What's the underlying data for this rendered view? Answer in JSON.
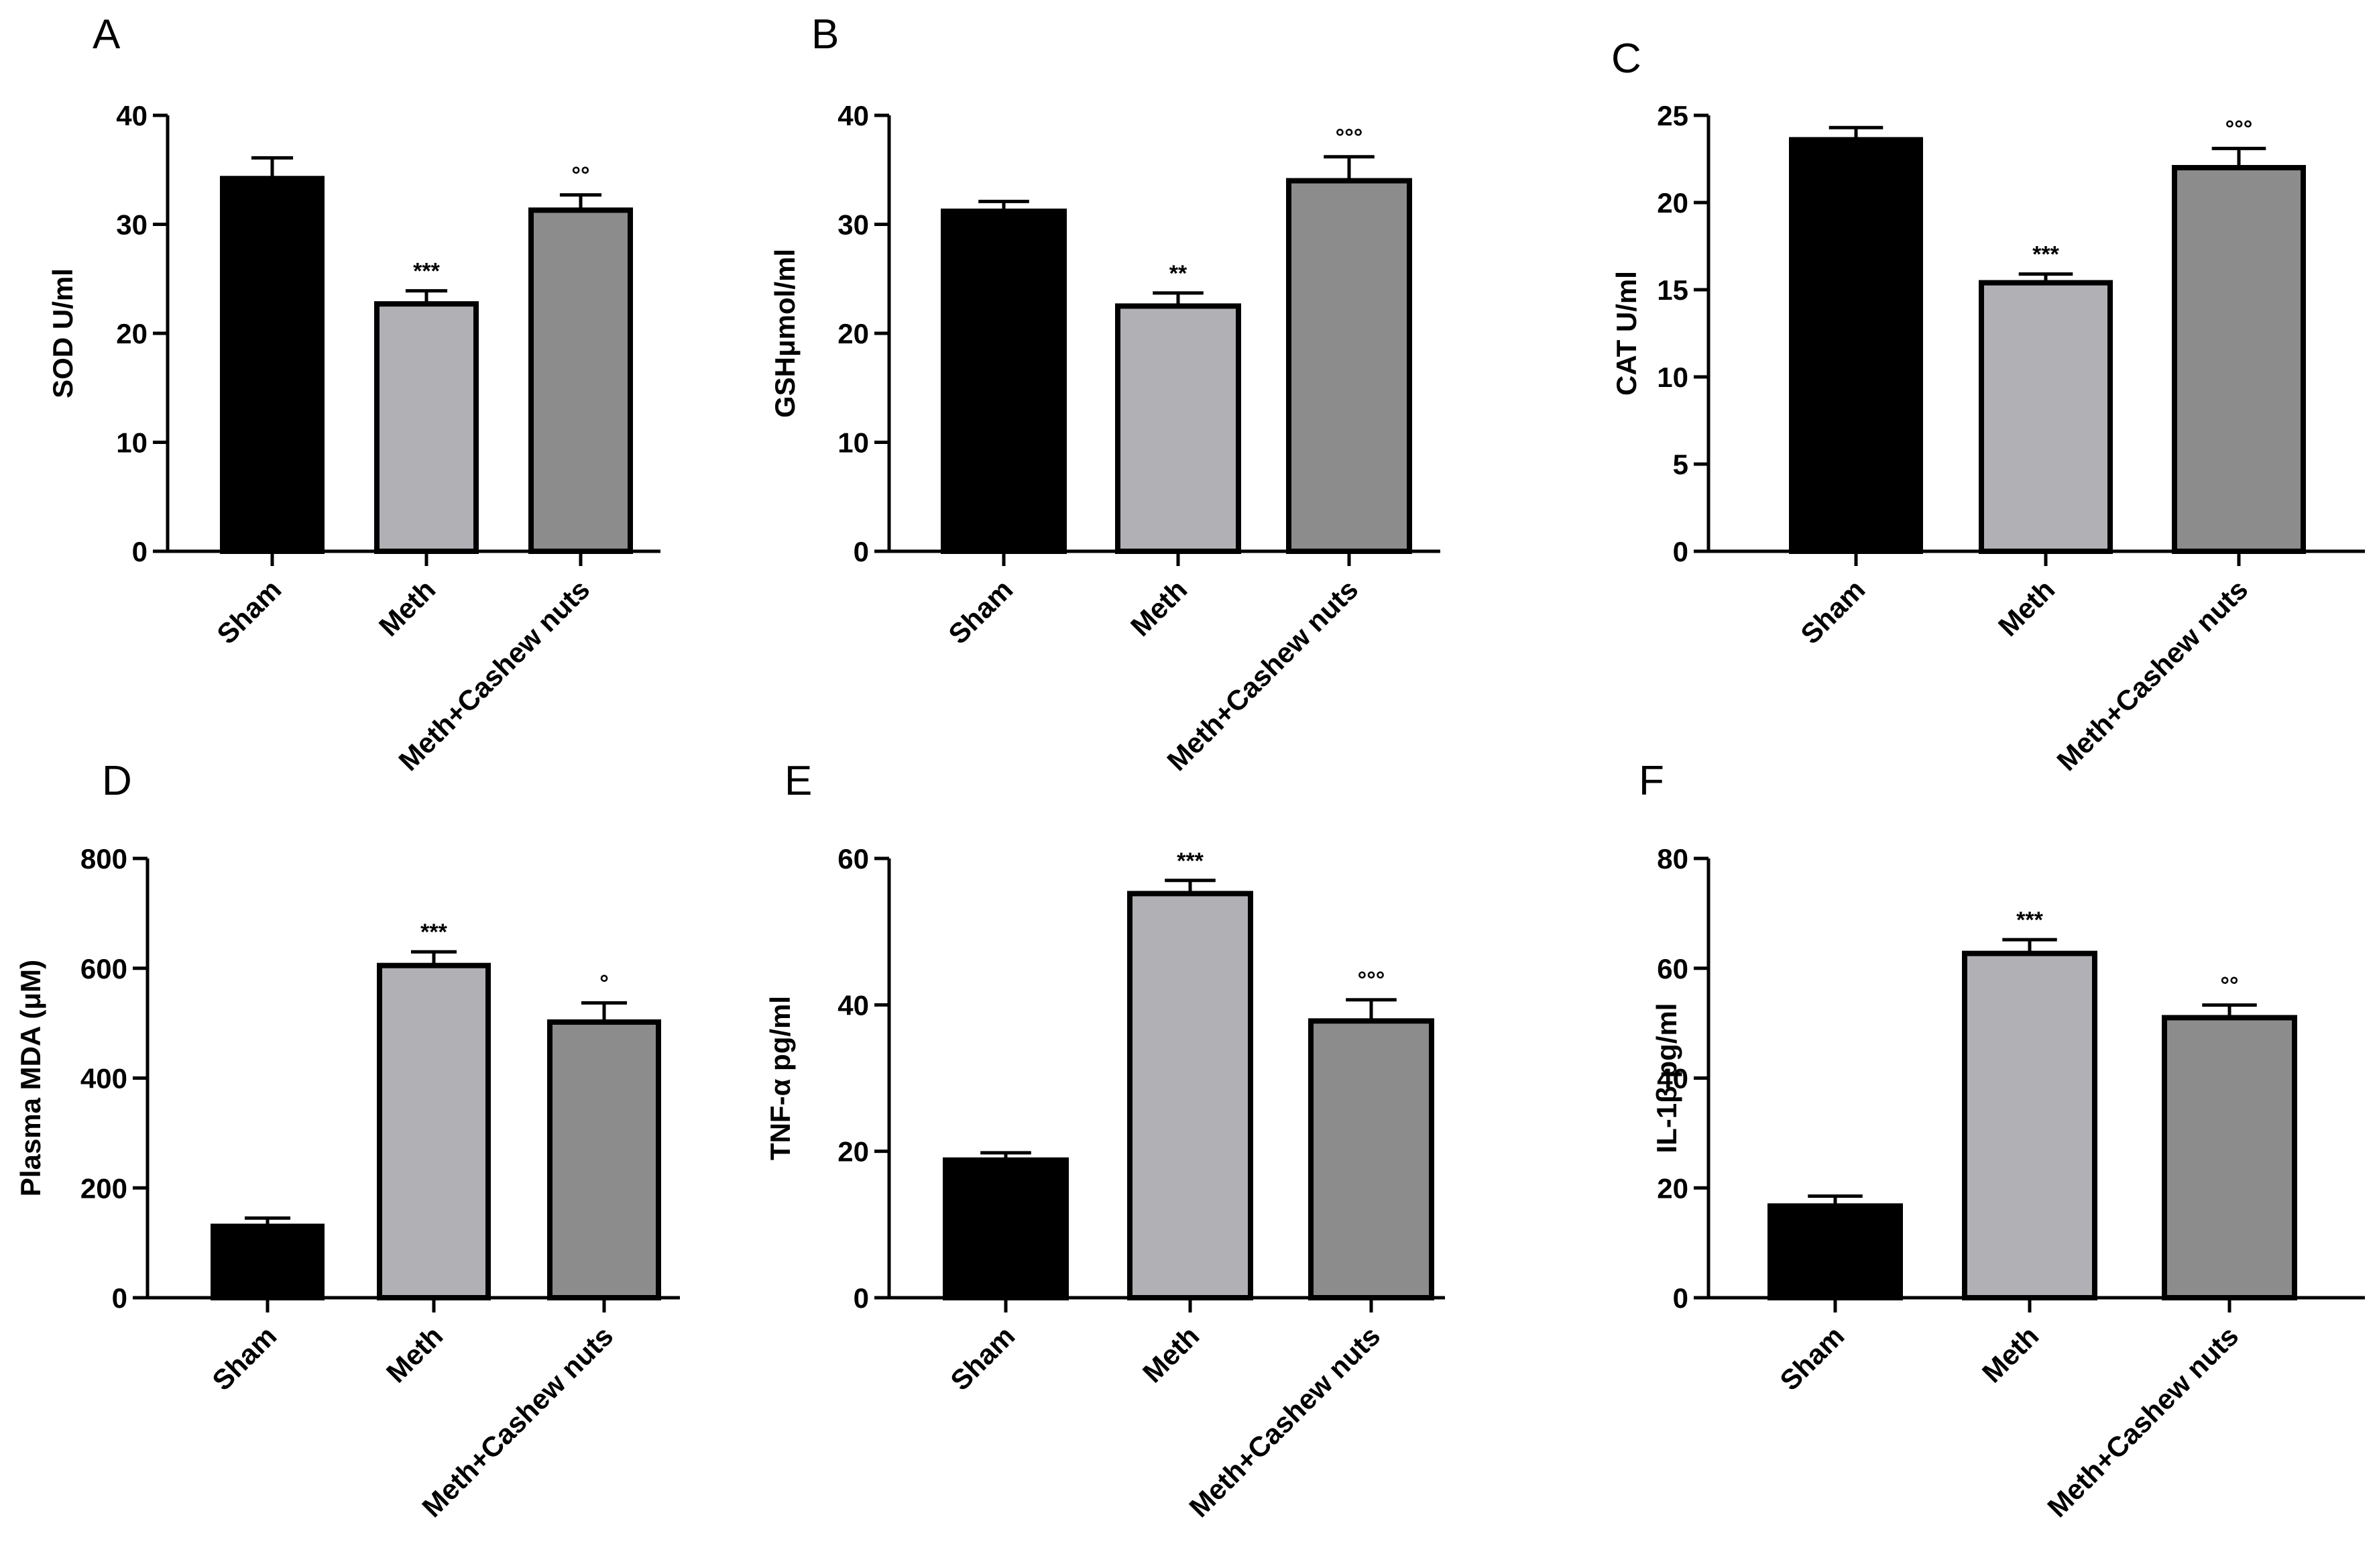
{
  "colors": {
    "sham": "#000000",
    "meth": "#b1b1b5",
    "meth_cashew": "#8c8c8c",
    "axis": "#000000"
  },
  "chart_data": [
    {
      "type": "bar",
      "panel": "A",
      "categories": [
        "Sham",
        "Meth",
        "Meth+Cashew nuts"
      ],
      "values": [
        34.2,
        22.7,
        31.3
      ],
      "errors": [
        1.9,
        1.2,
        1.4
      ],
      "significance": [
        "",
        "***",
        "°°"
      ],
      "ylabel": "SOD U/ml",
      "ylim": [
        0,
        40
      ],
      "yticks": [
        "0",
        "10",
        "20",
        "30",
        "40"
      ]
    },
    {
      "type": "bar",
      "panel": "B",
      "categories": [
        "Sham",
        "Meth",
        "Meth+Cashew nuts"
      ],
      "values": [
        31.2,
        22.5,
        34.0
      ],
      "errors": [
        0.9,
        1.2,
        2.2
      ],
      "significance": [
        "",
        "**",
        "°°°"
      ],
      "ylabel": "GSHμmol/ml",
      "ylim": [
        0,
        40
      ],
      "yticks": [
        "0",
        "10",
        "20",
        "30",
        "40"
      ]
    },
    {
      "type": "bar",
      "panel": "C",
      "categories": [
        "Sham",
        "Meth",
        "Meth+Cashew nuts"
      ],
      "values": [
        23.6,
        15.4,
        22.0
      ],
      "errors": [
        0.7,
        0.5,
        1.1
      ],
      "significance": [
        "",
        "***",
        "°°°"
      ],
      "ylabel": "CAT U/ml",
      "ylim": [
        0,
        25
      ],
      "yticks": [
        "0",
        "5",
        "10",
        "15",
        "20",
        "25"
      ]
    },
    {
      "type": "bar",
      "panel": "D",
      "categories": [
        "Sham",
        "Meth",
        "Meth+Cashew nuts"
      ],
      "values": [
        130,
        605,
        502
      ],
      "errors": [
        15,
        25,
        35
      ],
      "significance": [
        "",
        "***",
        "°"
      ],
      "ylabel": "Plasma MDA (μM)",
      "ylim": [
        0,
        800
      ],
      "yticks": [
        "0",
        "200",
        "400",
        "600",
        "800"
      ]
    },
    {
      "type": "bar",
      "panel": "E",
      "categories": [
        "Sham",
        "Meth",
        "Meth+Cashew nuts"
      ],
      "values": [
        18.8,
        55.2,
        37.8
      ],
      "errors": [
        1.0,
        1.8,
        2.9
      ],
      "significance": [
        "",
        "***",
        "°°°"
      ],
      "ylabel": "TNF-α pg/ml",
      "ylim": [
        0,
        60
      ],
      "yticks": [
        "0",
        "20",
        "40",
        "60"
      ]
    },
    {
      "type": "bar",
      "panel": "F",
      "categories": [
        "Sham",
        "Meth",
        "Meth+Cashew nuts"
      ],
      "values": [
        16.7,
        62.7,
        51.0
      ],
      "errors": [
        1.8,
        2.5,
        2.3
      ],
      "significance": [
        "",
        "***",
        "°°"
      ],
      "ylabel": "IL-1β pg/ml",
      "ylim": [
        0,
        80
      ],
      "yticks": [
        "0",
        "20",
        "40",
        "60",
        "80"
      ]
    }
  ]
}
